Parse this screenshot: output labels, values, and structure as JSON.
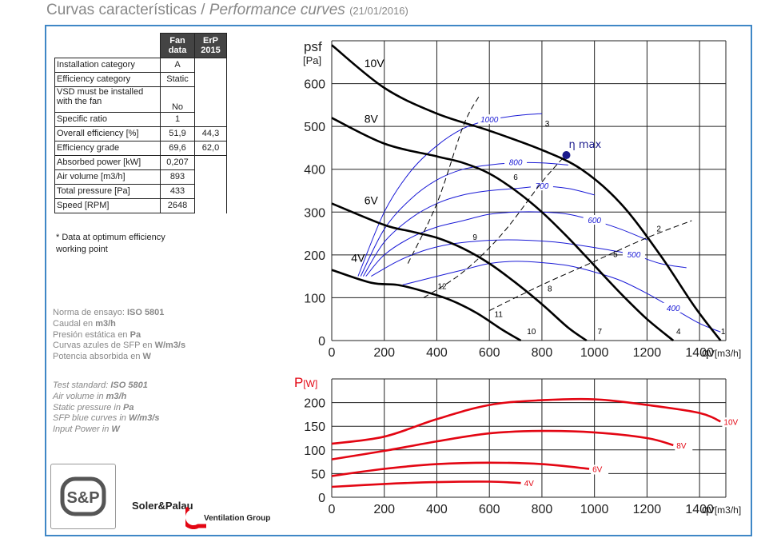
{
  "header": {
    "title_es": "Curvas características /",
    "title_en": "Performance curves",
    "date": "(21/01/2016)"
  },
  "fan_table": {
    "header_col1": "Fan data",
    "header_col2": "ErP 2015",
    "rows": [
      {
        "label": "Installation category",
        "value": "A",
        "erp": ""
      },
      {
        "label": "Efficiency category",
        "value": "Static",
        "erp": ""
      },
      {
        "label": "VSD must be installed with the fan",
        "value": "No",
        "erp": ""
      },
      {
        "label": "Specific ratio",
        "value": "1",
        "erp": ""
      },
      {
        "label": "Overall efficiency [%]",
        "value": "51,9",
        "erp": "44,3"
      },
      {
        "label": "Efficiency grade",
        "value": "69,6",
        "erp": "62,0"
      },
      {
        "label": "Absorbed power [kW]",
        "value": "0,207",
        "erp": ""
      },
      {
        "label": "Air volume [m3/h]",
        "value": "893",
        "erp": ""
      },
      {
        "label": "Total pressure [Pa]",
        "value": "433",
        "erp": ""
      },
      {
        "label": "Speed [RPM]",
        "value": "2648",
        "erp": ""
      }
    ],
    "note": "* Data at optimum efficiency working point"
  },
  "standards_es": {
    "l1a": "Norma de ensayo: ",
    "l1b": "ISO 5801",
    "l2a": "Caudal en ",
    "l2b": "m3/h",
    "l3a": "Presión estática en ",
    "l3b": "Pa",
    "l4a": "Curvas azules de SFP en ",
    "l4b": "W/m3/s",
    "l5a": "Potencia absorbida en ",
    "l5b": "W"
  },
  "standards_en": {
    "l1a": "Test standard: ",
    "l1b": "ISO 5801",
    "l2a": "Air volume in ",
    "l2b": "m3/h",
    "l3a": "Static pressure in ",
    "l3b": "Pa",
    "l4a": "SFP blue curves in ",
    "l4b": "W/m3/s",
    "l5a": "Input Power in ",
    "l5b": "W"
  },
  "brand": {
    "logo_text": "S&P",
    "name": "Soler&Palau",
    "sub": "Ventilation Group"
  },
  "colors": {
    "frame": "#3f87c6",
    "curve": "#000000",
    "sfp": "#1a1ad6",
    "power": "#e30613",
    "eta": "#1a1a8c"
  },
  "chart_data": [
    {
      "type": "line",
      "ylabel_main": "psf",
      "ylabel_unit": "[Pa]",
      "xlabel_main": "qv",
      "xlabel_unit": "[m3/h]",
      "xlim": [
        0,
        1500
      ],
      "ylim": [
        0,
        700
      ],
      "xticks": [
        0,
        200,
        400,
        600,
        800,
        1000,
        1200,
        1400
      ],
      "yticks": [
        0,
        100,
        200,
        300,
        400,
        500,
        600
      ],
      "grid": true,
      "series": [
        {
          "name": "10V",
          "x": [
            0,
            200,
            400,
            600,
            800,
            950,
            1100,
            1250,
            1380,
            1480
          ],
          "y": [
            690,
            590,
            530,
            490,
            445,
            400,
            320,
            200,
            80,
            0
          ]
        },
        {
          "name": "8V",
          "x": [
            0,
            200,
            400,
            500,
            600,
            700,
            800,
            900,
            1000,
            1100,
            1200,
            1300
          ],
          "y": [
            520,
            460,
            430,
            415,
            390,
            350,
            300,
            240,
            175,
            110,
            50,
            0
          ]
        },
        {
          "name": "6V",
          "x": [
            0,
            200,
            300,
            400,
            500,
            600,
            700,
            800,
            900,
            970
          ],
          "y": [
            320,
            270,
            255,
            240,
            215,
            180,
            135,
            85,
            30,
            0
          ]
        },
        {
          "name": "4V",
          "x": [
            0,
            150,
            250,
            350,
            450,
            550,
            650,
            720
          ],
          "y": [
            165,
            135,
            130,
            115,
            95,
            65,
            25,
            0
          ]
        }
      ],
      "sfp_curves": [
        {
          "label": "1000",
          "x": [
            100,
            200,
            300,
            400,
            500,
            600,
            700,
            800
          ],
          "y": [
            150,
            300,
            395,
            455,
            495,
            515,
            525,
            530
          ]
        },
        {
          "label": "800",
          "x": [
            110,
            200,
            300,
            400,
            500,
            600,
            700,
            800,
            900
          ],
          "y": [
            150,
            260,
            330,
            375,
            400,
            410,
            415,
            415,
            410
          ]
        },
        {
          "label": "700",
          "x": [
            120,
            200,
            300,
            400,
            500,
            600,
            700,
            800,
            900,
            1000
          ],
          "y": [
            150,
            230,
            285,
            320,
            340,
            350,
            355,
            360,
            355,
            340
          ]
        },
        {
          "label": "600",
          "x": [
            130,
            200,
            300,
            400,
            500,
            600,
            700,
            800,
            900,
            1000,
            1100,
            1200
          ],
          "y": [
            150,
            200,
            240,
            265,
            280,
            295,
            300,
            300,
            295,
            280,
            260,
            235
          ]
        },
        {
          "label": "500",
          "x": [
            150,
            250,
            350,
            450,
            550,
            650,
            750,
            850,
            950,
            1050,
            1150,
            1250,
            1350
          ],
          "y": [
            150,
            185,
            210,
            225,
            232,
            235,
            234,
            230,
            222,
            212,
            200,
            180,
            170
          ]
        },
        {
          "label": "400",
          "x": [
            270,
            400,
            500,
            600,
            700,
            800,
            900,
            1000,
            1100,
            1200,
            1300,
            1400,
            1480
          ],
          "y": [
            130,
            150,
            165,
            180,
            185,
            182,
            175,
            160,
            140,
            110,
            75,
            40,
            20
          ]
        }
      ],
      "system_lines": [
        {
          "x": [
            290,
            400,
            500,
            560
          ],
          "y": [
            180,
            320,
            500,
            570
          ]
        },
        {
          "x": [
            350,
            500,
            650,
            800,
            890
          ],
          "y": [
            100,
            160,
            250,
            370,
            433
          ]
        },
        {
          "x": [
            600,
            800,
            1000,
            1200,
            1370
          ],
          "y": [
            70,
            130,
            185,
            240,
            280
          ]
        }
      ],
      "point_labels": [
        {
          "text": "1",
          "x": 1490,
          "y": 15
        },
        {
          "text": "2",
          "x": 1245,
          "y": 255
        },
        {
          "text": "3",
          "x": 820,
          "y": 500
        },
        {
          "text": "4",
          "x": 1320,
          "y": 15
        },
        {
          "text": "5",
          "x": 1080,
          "y": 195
        },
        {
          "text": "6",
          "x": 700,
          "y": 375
        },
        {
          "text": "7",
          "x": 1020,
          "y": 15
        },
        {
          "text": "8",
          "x": 830,
          "y": 115
        },
        {
          "text": "9",
          "x": 545,
          "y": 235
        },
        {
          "text": "10",
          "x": 760,
          "y": 15
        },
        {
          "text": "11",
          "x": 635,
          "y": 55
        },
        {
          "text": "12",
          "x": 420,
          "y": 120
        }
      ],
      "efficiency_point": {
        "label": "η max",
        "x": 893,
        "y": 433
      }
    },
    {
      "type": "line",
      "ylabel_main": "P",
      "ylabel_unit": "[W]",
      "xlabel_main": "qv",
      "xlabel_unit": "[m3/h]",
      "xlim": [
        0,
        1500
      ],
      "ylim": [
        0,
        250
      ],
      "xticks": [
        0,
        200,
        400,
        600,
        800,
        1000,
        1200,
        1400
      ],
      "yticks": [
        0,
        50,
        100,
        150,
        200
      ],
      "grid": true,
      "series": [
        {
          "name": "10V",
          "x": [
            0,
            200,
            400,
            600,
            800,
            1000,
            1200,
            1400,
            1480
          ],
          "y": [
            113,
            128,
            165,
            195,
            205,
            207,
            195,
            178,
            160
          ]
        },
        {
          "name": "8V",
          "x": [
            0,
            200,
            400,
            600,
            800,
            1000,
            1200,
            1300
          ],
          "y": [
            80,
            98,
            118,
            135,
            140,
            137,
            125,
            110
          ]
        },
        {
          "name": "6V",
          "x": [
            0,
            200,
            400,
            600,
            800,
            980
          ],
          "y": [
            45,
            60,
            70,
            73,
            70,
            60
          ]
        },
        {
          "name": "4V",
          "x": [
            0,
            200,
            400,
            600,
            720
          ],
          "y": [
            22,
            28,
            32,
            33,
            30
          ]
        }
      ]
    }
  ]
}
